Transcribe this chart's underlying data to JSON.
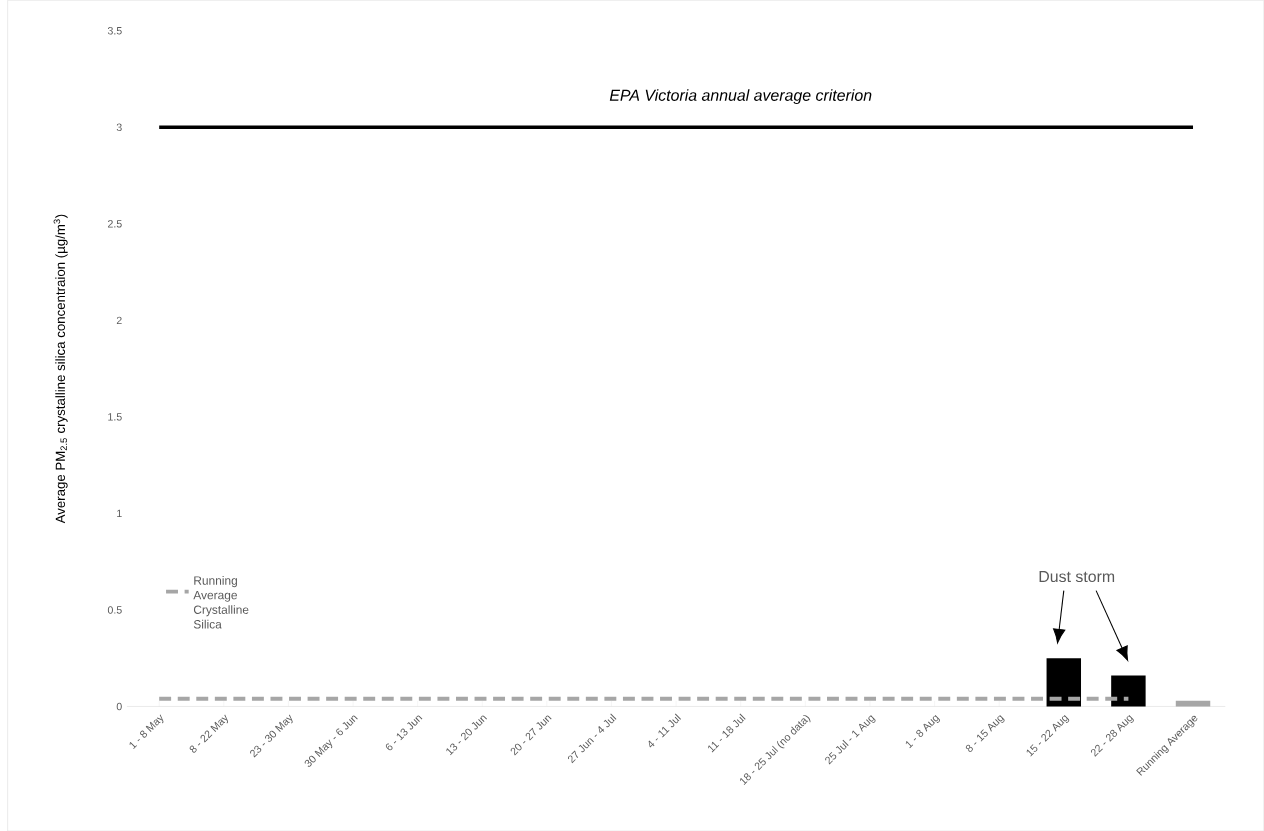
{
  "chart_data": {
    "type": "bar",
    "ylabel": "Average PM$_{2.5}$ crystalline silica concentraion (µg/m$^{3}$)",
    "categories": [
      "1 - 8 May",
      "8 - 22 May",
      "23 - 30 May",
      "30 May - 6 Jun",
      "6 - 13 Jun",
      "13 - 20 Jun",
      "20 - 27 Jun",
      "27 Jun - 4 Jul",
      "4 - 11 Jul",
      "11 - 18 Jul",
      "18 - 25 Jul (no data)",
      "25 Jul - 1 Aug",
      "1 - 8 Aug",
      "8 - 15 Aug",
      "15 - 22 Aug",
      "22 - 28 Aug",
      "Running Average"
    ],
    "series": [
      {
        "colors": [
          "#000000",
          "#000000",
          "#000000",
          "#000000",
          "#000000",
          "#000000",
          "#000000",
          "#000000",
          "#000000",
          "#000000",
          "#000000",
          "#000000",
          "#000000",
          "#000000",
          "#000000",
          "#000000",
          "#a6a6a6"
        ],
        "values": [
          null,
          null,
          null,
          null,
          null,
          null,
          null,
          null,
          null,
          null,
          null,
          null,
          null,
          null,
          0.25,
          0.16,
          0.03
        ]
      },
      {
        "type": "line",
        "name": "Running Average Crystalline Silica",
        "color": "#a6a6a6",
        "line_style": "dashed",
        "values": [
          0.04,
          0.04,
          0.04,
          0.04,
          0.04,
          0.04,
          0.04,
          0.04,
          0.04,
          0.04,
          0.04,
          0.04,
          0.04,
          0.04,
          0.04,
          0.04,
          null
        ]
      }
    ],
    "ylim": [
      0,
      3.5
    ],
    "yticks": [
      0,
      0.5,
      1,
      1.5,
      2,
      2.5,
      3,
      3.5
    ],
    "ref_lines": [
      {
        "axis": "y",
        "value": 3,
        "label": "EPA Victoria annual average criterion",
        "color": "#000000"
      }
    ],
    "annotations": [
      "Dust storm"
    ],
    "legend": "left"
  }
}
